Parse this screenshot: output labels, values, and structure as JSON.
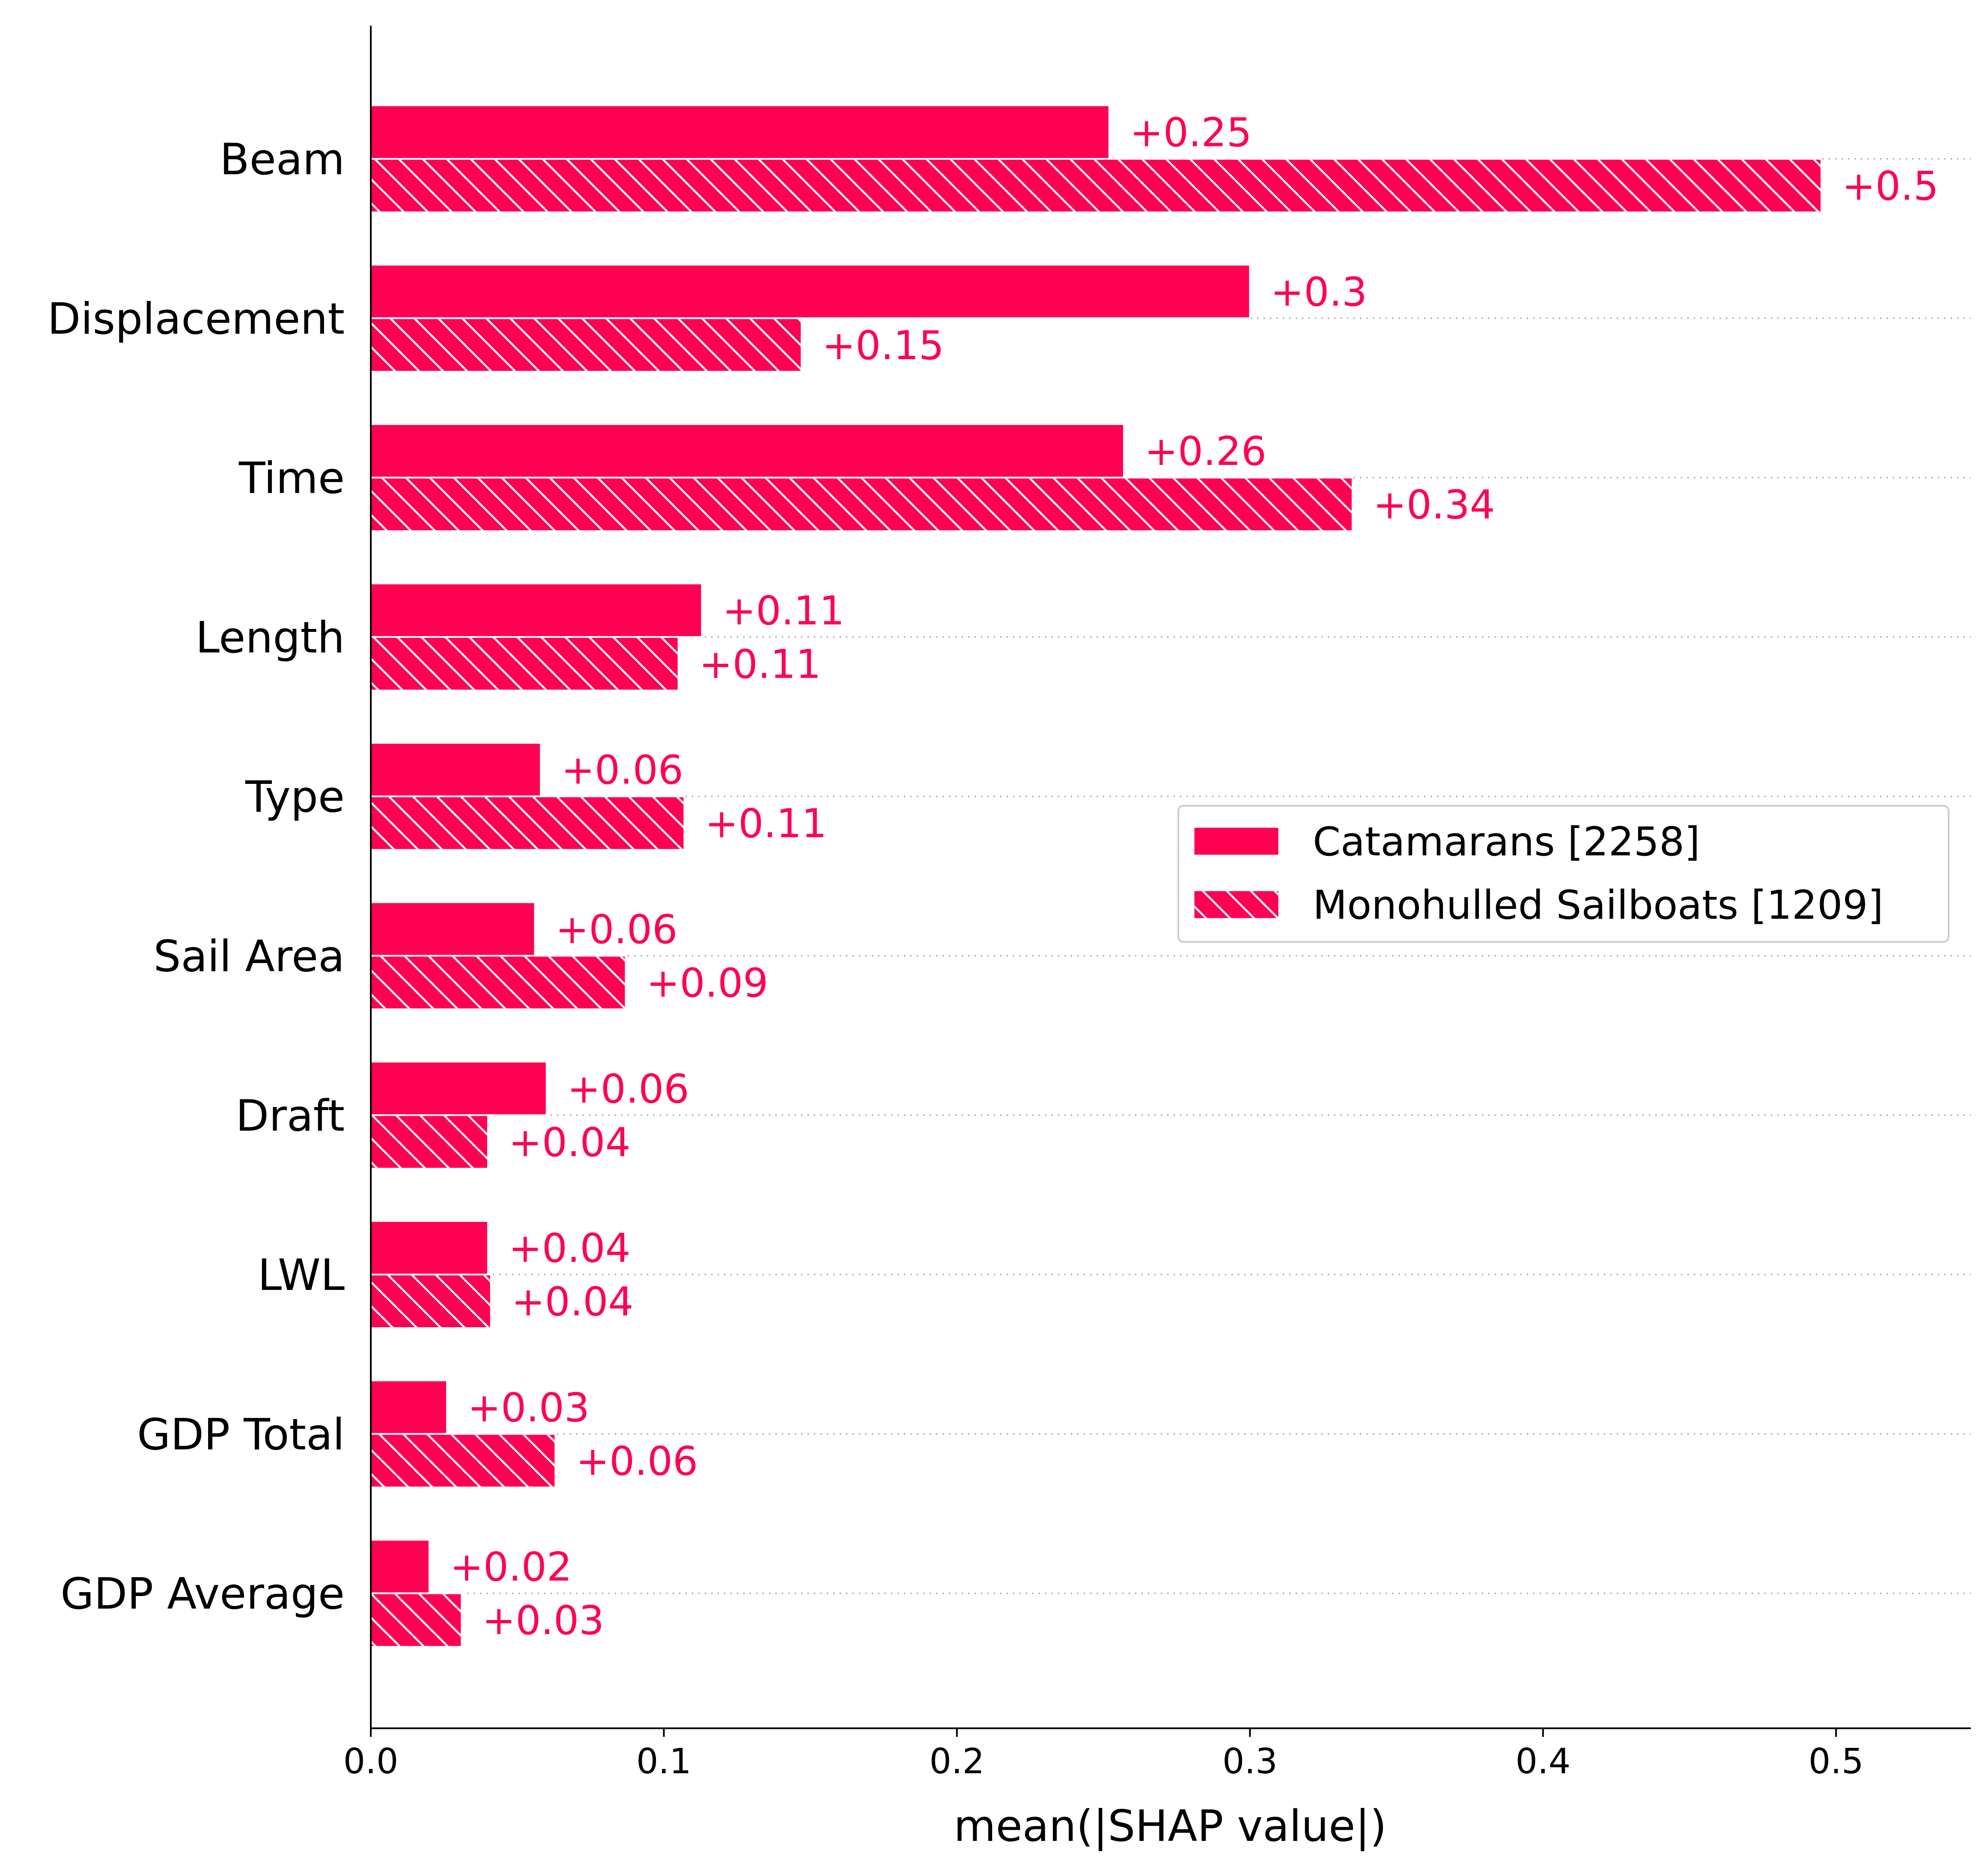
{
  "chart_data": {
    "type": "bar",
    "orientation": "horizontal",
    "title": "",
    "xlabel": "mean(|SHAP value|)",
    "ylabel": "",
    "categories": [
      "Beam",
      "Displacement",
      "Time",
      "Length",
      "Type",
      "Sail Area",
      "Draft",
      "LWL",
      "GDP Total",
      "GDP Average"
    ],
    "series": [
      {
        "name": "Catamarans [2258]",
        "pattern": "solid",
        "values": [
          0.252,
          0.3,
          0.257,
          0.113,
          0.058,
          0.056,
          0.06,
          0.04,
          0.026,
          0.02
        ],
        "labels": [
          "+0.25",
          "+0.3",
          "+0.26",
          "+0.11",
          "+0.06",
          "+0.06",
          "+0.06",
          "+0.04",
          "+0.03",
          "+0.02"
        ]
      },
      {
        "name": "Monohulled Sailboats [1209]",
        "pattern": "hatch",
        "values": [
          0.495,
          0.147,
          0.335,
          0.105,
          0.107,
          0.087,
          0.04,
          0.041,
          0.063,
          0.031
        ],
        "labels": [
          "+0.5",
          "+0.15",
          "+0.34",
          "+0.11",
          "+0.11",
          "+0.09",
          "+0.04",
          "+0.04",
          "+0.06",
          "+0.03"
        ]
      }
    ],
    "xlim": [
      0.0,
      0.546
    ],
    "xticks": [
      0.0,
      0.1,
      0.2,
      0.3,
      0.4,
      0.5
    ],
    "xtick_labels": [
      "0.0",
      "0.1",
      "0.2",
      "0.3",
      "0.4",
      "0.5"
    ],
    "grid": "dotted horizontal row lines",
    "legend_position": "center-right",
    "bar_color": "#ff0052",
    "label_color": "#ff0052",
    "hatch_color": "#ffffff"
  }
}
